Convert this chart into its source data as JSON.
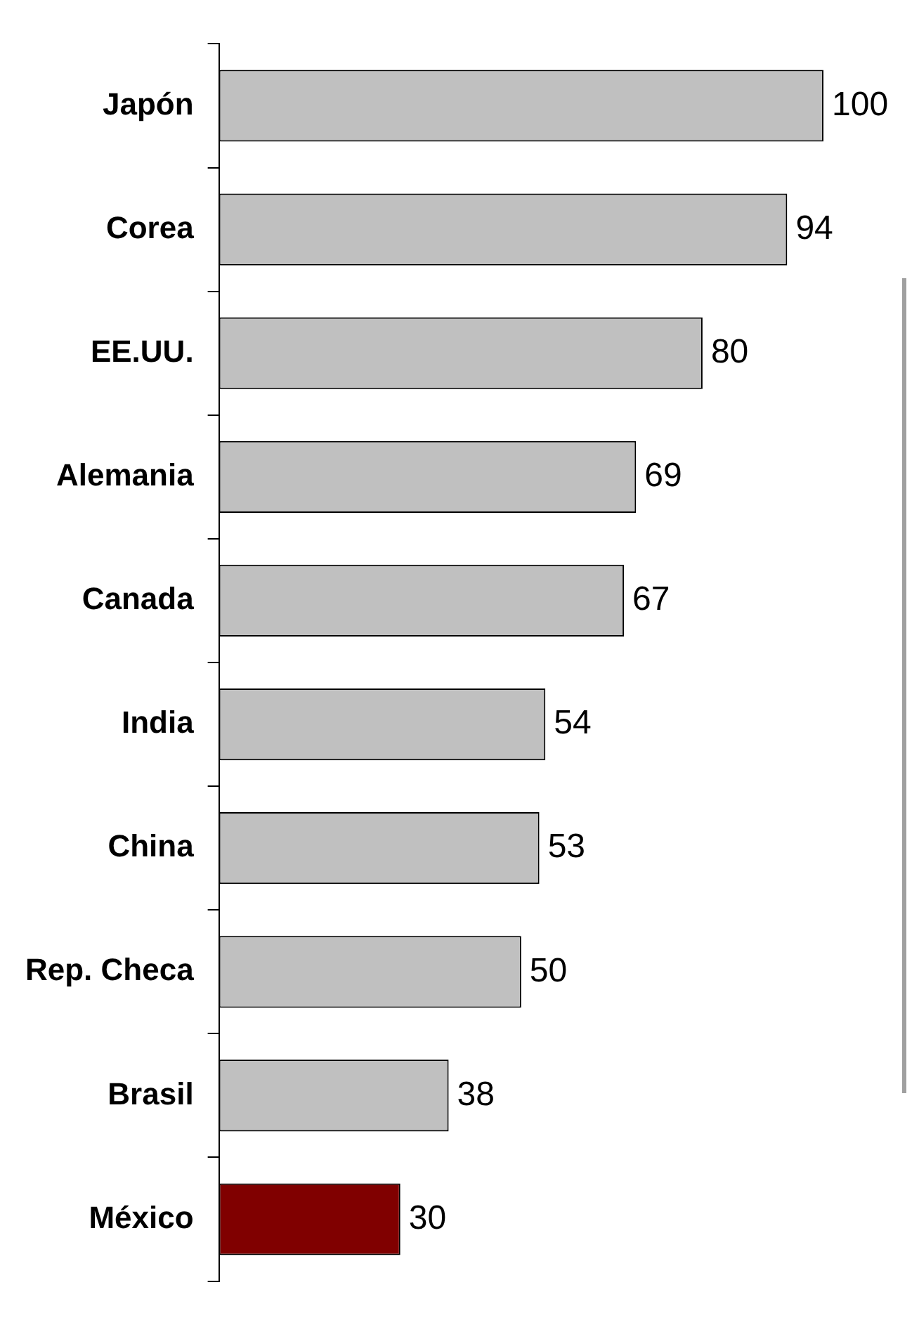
{
  "chart_data": {
    "type": "bar",
    "orientation": "horizontal",
    "categories": [
      "Japón",
      "Corea",
      "EE.UU.",
      "Alemania",
      "Canada",
      "India",
      "China",
      "Rep. Checa",
      "Brasil",
      "México"
    ],
    "values": [
      100,
      94,
      80,
      69,
      67,
      54,
      53,
      50,
      38,
      30
    ],
    "colors": [
      "#c0c0c0",
      "#c0c0c0",
      "#c0c0c0",
      "#c0c0c0",
      "#c0c0c0",
      "#c0c0c0",
      "#c0c0c0",
      "#c0c0c0",
      "#c0c0c0",
      "#800000"
    ],
    "data_labels": true
  }
}
